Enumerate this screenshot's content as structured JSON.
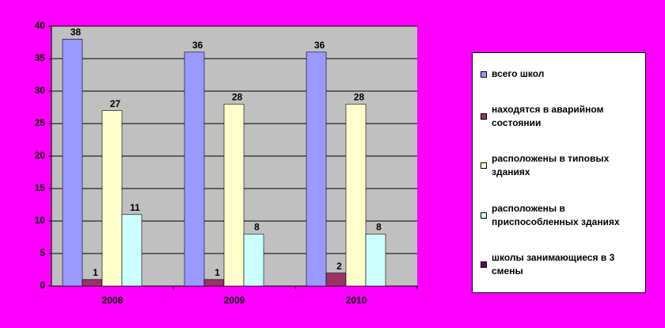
{
  "chart_data": {
    "type": "bar",
    "categories": [
      "2008",
      "2009",
      "2010"
    ],
    "series": [
      {
        "name": "всего школ",
        "color": "#9999ff",
        "values": [
          38,
          36,
          36
        ]
      },
      {
        "name": "находятся в аварийном состоянии",
        "color": "#993366",
        "values": [
          1,
          1,
          2
        ]
      },
      {
        "name": "расположены в типовых зданиях",
        "color": "#ffffcc",
        "values": [
          27,
          28,
          28
        ]
      },
      {
        "name": "расположены в приспособленных зданиях",
        "color": "#ccffff",
        "values": [
          11,
          8,
          8
        ]
      },
      {
        "name": "школы занимающиеся в 3 смены",
        "color": "#660066",
        "values": [
          null,
          null,
          null
        ]
      }
    ],
    "ylim": [
      0,
      40
    ],
    "yticks": [
      0,
      5,
      10,
      15,
      20,
      25,
      30,
      35,
      40
    ],
    "grid": true,
    "legend": "right"
  }
}
